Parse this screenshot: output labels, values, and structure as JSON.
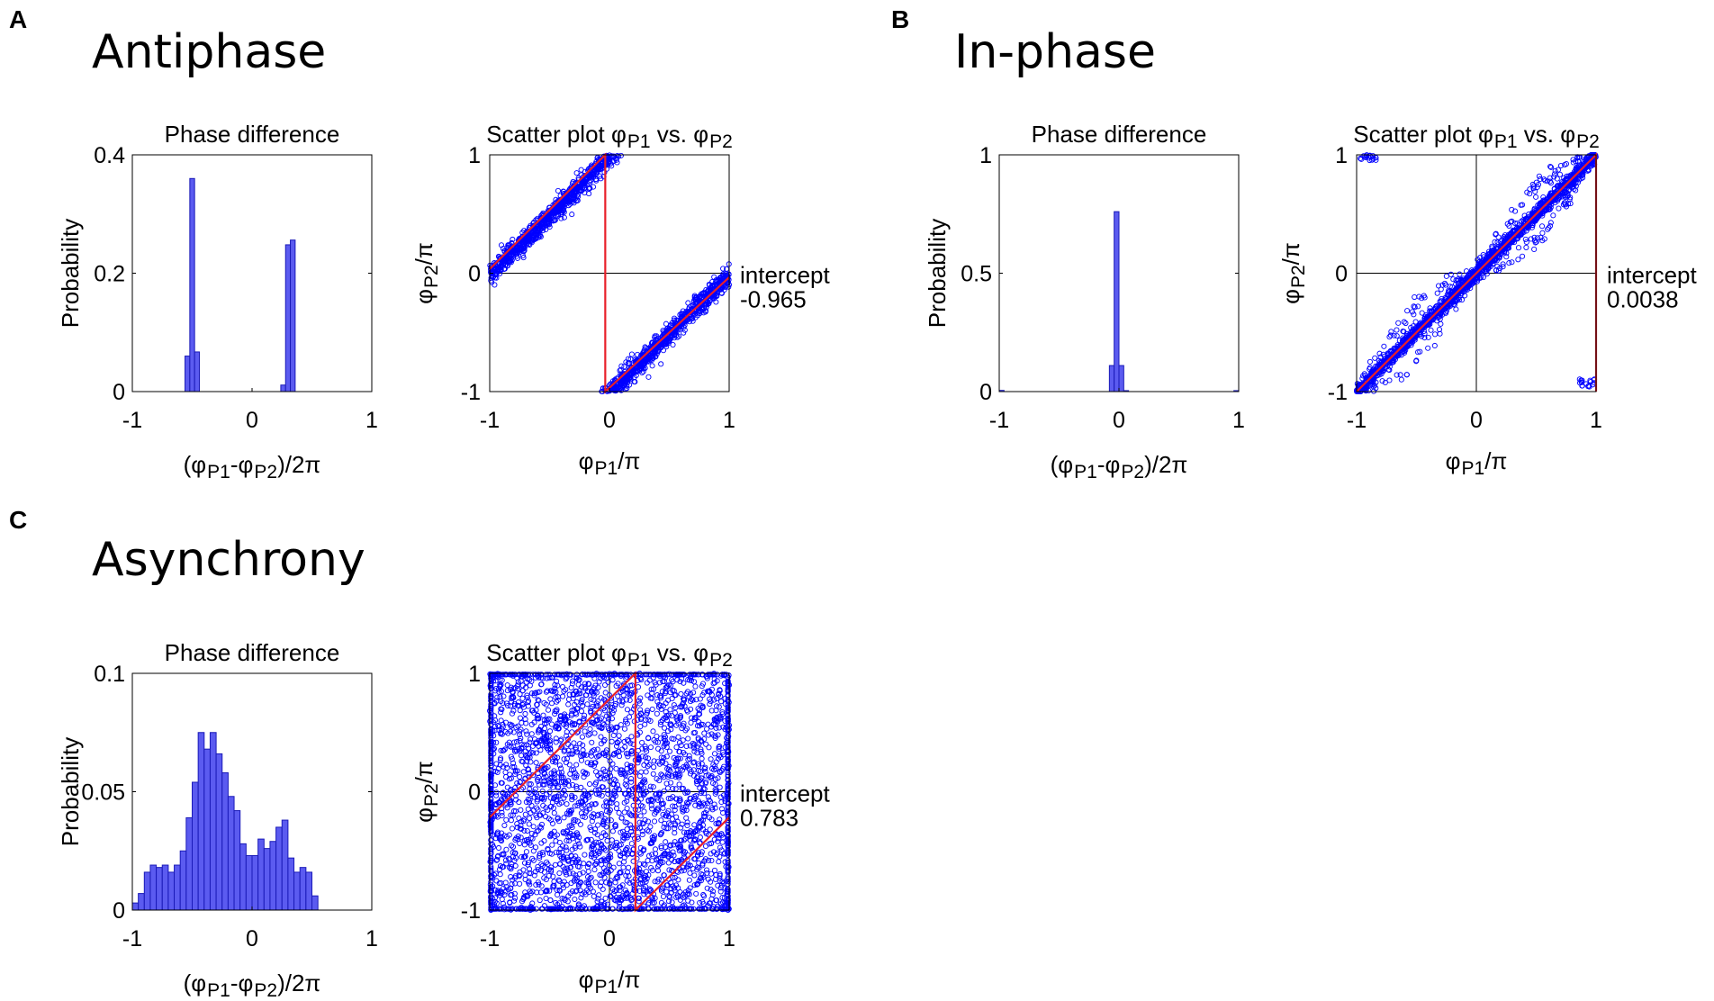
{
  "panels": [
    {
      "letter": "A",
      "title": "Antiphase"
    },
    {
      "letter": "B",
      "title": "In-phase"
    },
    {
      "letter": "C",
      "title": "Asynchrony"
    }
  ],
  "common": {
    "hist_title": "Phase difference",
    "hist_ylabel": "Probability",
    "hist_xlabel": "(φP1-φP2)/2π",
    "scatter_title": "Scatter plot φP1 vs. φP2",
    "scatter_xlabel": "φP1/π",
    "scatter_ylabel": "φP2/π",
    "intercept_label": "intercept"
  },
  "colors": {
    "bar_fill": "#5b5bf0",
    "bar_edge": "#1a1ab8",
    "scatter_point": "#0000ff",
    "fit_line": "#e8202a"
  },
  "chart_data": [
    {
      "type": "bar",
      "panel": "A",
      "title": "Phase difference",
      "xlabel": "(φP1-φP2)/2π",
      "ylabel": "Probability",
      "xlim": [
        -1,
        1
      ],
      "ylim": [
        0,
        0.4
      ],
      "xticks": [
        "-1",
        "0",
        "1"
      ],
      "yticks": [
        "0",
        "0.2",
        "0.4"
      ],
      "bin_width": 0.04,
      "bin_start": -1,
      "values": [
        0,
        0,
        0,
        0,
        0,
        0,
        0,
        0,
        0,
        0,
        0,
        0.06,
        0.36,
        0.067,
        0,
        0,
        0,
        0,
        0,
        0,
        0,
        0,
        0,
        0,
        0,
        0,
        0,
        0,
        0,
        0,
        0,
        0.011,
        0.248,
        0.256,
        0,
        0,
        0,
        0,
        0,
        0,
        0,
        0,
        0,
        0,
        0,
        0,
        0,
        0,
        0,
        0
      ]
    },
    {
      "type": "scatter",
      "panel": "A",
      "title": "Scatter plot φP1 vs. φP2",
      "xlabel": "φP1/π",
      "ylabel": "φP2/π",
      "xlim": [
        -1,
        1
      ],
      "ylim": [
        -1,
        1
      ],
      "xticks": [
        "-1",
        "0",
        "1"
      ],
      "yticks": [
        "-1",
        "0",
        "1"
      ],
      "pattern": "antiphase",
      "intercept_value": "-0.965"
    },
    {
      "type": "bar",
      "panel": "B",
      "title": "Phase difference",
      "xlabel": "(φP1-φP2)/2π",
      "ylabel": "Probability",
      "xlim": [
        -1,
        1
      ],
      "ylim": [
        0,
        1
      ],
      "xticks": [
        "-1",
        "0",
        "1"
      ],
      "yticks": [
        "0",
        "0.5",
        "1"
      ],
      "bin_width": 0.04,
      "bin_start": -1,
      "values": [
        0.005,
        0,
        0,
        0,
        0,
        0,
        0,
        0,
        0,
        0,
        0,
        0,
        0,
        0,
        0,
        0,
        0,
        0,
        0,
        0,
        0,
        0,
        0,
        0.11,
        0.76,
        0.11,
        0.004,
        0,
        0,
        0,
        0,
        0,
        0,
        0,
        0,
        0,
        0,
        0,
        0,
        0,
        0,
        0,
        0,
        0,
        0,
        0,
        0,
        0,
        0,
        0.004
      ]
    },
    {
      "type": "scatter",
      "panel": "B",
      "title": "Scatter plot φP1 vs. φP2",
      "xlabel": "φP1/π",
      "ylabel": "φP2/π",
      "xlim": [
        -1,
        1
      ],
      "ylim": [
        -1,
        1
      ],
      "xticks": [
        "-1",
        "0",
        "1"
      ],
      "yticks": [
        "-1",
        "0",
        "1"
      ],
      "pattern": "inphase",
      "intercept_value": "0.0038"
    },
    {
      "type": "bar",
      "panel": "C",
      "title": "Phase difference",
      "xlabel": "(φP1-φP2)/2π",
      "ylabel": "Probability",
      "xlim": [
        -1,
        1
      ],
      "ylim": [
        0,
        0.1
      ],
      "xticks": [
        "-1",
        "0",
        "1"
      ],
      "yticks": [
        "0",
        "0.05",
        "0.1"
      ],
      "bin_width": 0.05,
      "bin_start": -1,
      "values": [
        0.003,
        0.007,
        0.016,
        0.019,
        0.018,
        0.019,
        0.016,
        0.019,
        0.025,
        0.039,
        0.054,
        0.075,
        0.068,
        0.075,
        0.066,
        0.058,
        0.048,
        0.042,
        0.028,
        0.023,
        0.023,
        0.03,
        0.026,
        0.029,
        0.035,
        0.038,
        0.022,
        0.016,
        0.018,
        0.016,
        0.006
      ]
    },
    {
      "type": "scatter",
      "panel": "C",
      "title": "Scatter plot φP1 vs. φP2",
      "xlabel": "φP1/π",
      "ylabel": "φP2/π",
      "xlim": [
        -1,
        1
      ],
      "ylim": [
        -1,
        1
      ],
      "xticks": [
        "-1",
        "0",
        "1"
      ],
      "yticks": [
        "-1",
        "0",
        "1"
      ],
      "pattern": "async",
      "intercept_value": "0.783"
    }
  ]
}
